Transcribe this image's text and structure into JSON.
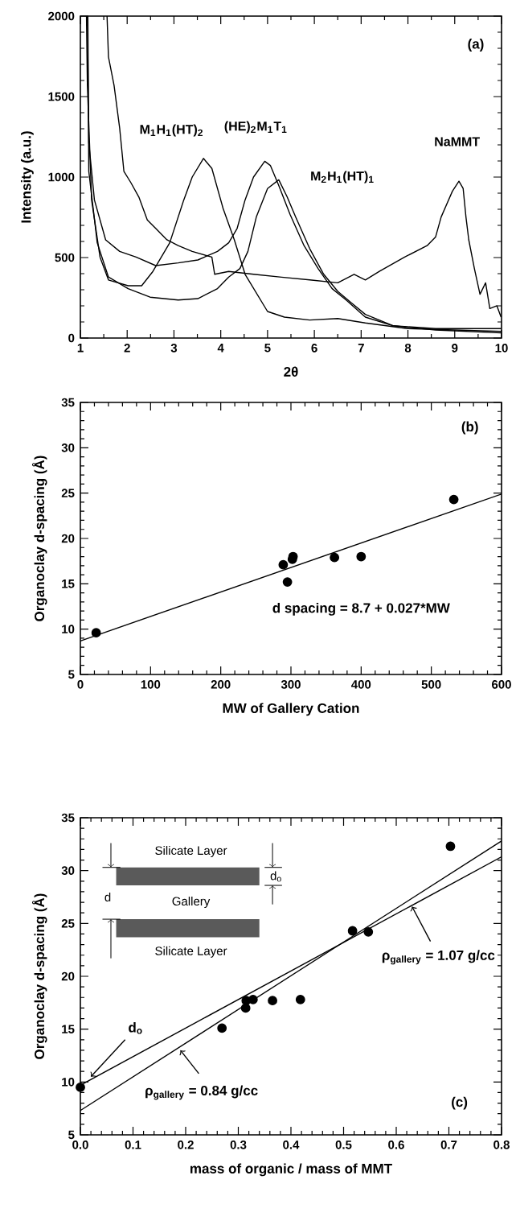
{
  "chart_data": [
    {
      "type": "line",
      "xlabel": "2θ",
      "ylabel": "Intensity (a.u.)",
      "xlim": [
        1,
        10
      ],
      "ylim": [
        0,
        2000
      ],
      "xticks": [
        1,
        2,
        3,
        4,
        5,
        6,
        7,
        8,
        9,
        10
      ],
      "yticks": [
        0,
        500,
        1000,
        1500,
        2000
      ],
      "line_style": "solid",
      "annotations": [
        "(a)"
      ],
      "series": [
        {
          "name": "M$_{1}$H$_{1}$(HT)$_{2}$",
          "color": "#000000",
          "x": [
            1.13,
            1.15,
            1.24,
            1.42,
            1.6,
            2.02,
            2.31,
            2.55,
            2.91,
            3.21,
            3.39,
            3.63,
            3.81,
            4.05,
            4.29,
            4.52,
            5.0,
            5.36,
            5.9,
            6.5,
            7.09,
            7.99,
            9.99
          ],
          "values": [
            2000,
            1569,
            858,
            503,
            361,
            325,
            325,
            414,
            592,
            858,
            1000,
            1116,
            1054,
            805,
            610,
            396,
            165,
            130,
            112,
            121,
            94,
            59,
            41
          ]
        },
        {
          "name": "(HE)$_{2}$M$_{1}$T$_{1}$",
          "color": "#000000",
          "x": [
            1.15,
            1.18,
            1.3,
            1.54,
            1.84,
            2.19,
            2.61,
            3.09,
            3.51,
            3.93,
            4.17,
            4.35,
            4.52,
            4.7,
            4.94,
            5.06,
            5.24,
            5.48,
            5.78,
            6.08,
            6.38,
            6.68,
            7.09,
            7.69,
            8.59,
            9.99
          ],
          "values": [
            2000,
            1214,
            858,
            610,
            538,
            503,
            450,
            467,
            485,
            538,
            592,
            681,
            858,
            1000,
            1098,
            1072,
            947,
            769,
            574,
            432,
            307,
            236,
            130,
            76,
            59,
            59
          ]
        },
        {
          "name": "M$_{2}$H$_{1}$(HT)$_{1}$",
          "color": "#000000",
          "x": [
            1.16,
            1.18,
            1.36,
            1.6,
            2.02,
            2.49,
            3.09,
            3.51,
            3.93,
            4.17,
            4.41,
            4.58,
            4.76,
            5.0,
            5.24,
            5.42,
            5.6,
            5.9,
            6.2,
            6.5,
            6.79,
            7.09,
            7.69,
            8.59,
            9.99
          ],
          "values": [
            2000,
            1036,
            592,
            379,
            307,
            254,
            236,
            245,
            307,
            379,
            432,
            538,
            752,
            929,
            983,
            876,
            752,
            556,
            396,
            290,
            219,
            147,
            76,
            50,
            32
          ]
        },
        {
          "name": "NaMMT",
          "color": "#000000",
          "x": [
            1.57,
            1.6,
            1.72,
            1.84,
            1.93,
            2.08,
            2.25,
            2.43,
            2.61,
            2.85,
            3.09,
            3.39,
            3.81,
            3.87,
            4.17,
            4.7,
            5.3,
            5.9,
            6.5,
            6.85,
            7.09,
            7.39,
            7.93,
            8.41,
            8.59,
            8.71,
            8.95,
            9.09,
            9.18,
            9.24,
            9.3,
            9.42,
            9.54,
            9.66,
            9.75,
            9.9,
            9.99
          ],
          "values": [
            2000,
            1747,
            1569,
            1303,
            1036,
            965,
            876,
            734,
            681,
            610,
            574,
            538,
            503,
            396,
            414,
            396,
            378,
            361,
            343,
            396,
            361,
            414,
            503,
            574,
            627,
            752,
            912,
            974,
            929,
            752,
            610,
            432,
            272,
            343,
            183,
            201,
            130
          ]
        }
      ]
    },
    {
      "type": "scatter",
      "xlabel": "MW of Gallery Cation",
      "ylabel": "Organoclay d-spacing (Å)",
      "xlim": [
        0,
        600
      ],
      "ylim": [
        5,
        35
      ],
      "xticks": [
        0,
        100,
        200,
        300,
        400,
        500,
        600
      ],
      "yticks": [
        5,
        10,
        15,
        20,
        25,
        30,
        35
      ],
      "line_style": "solid",
      "annotations": [
        "(b)",
        "d spacing = 8.7 + 0.027*MW"
      ],
      "series": [
        {
          "type": "scatter",
          "marker": "circle",
          "color": "#000000",
          "x": [
            22.5,
            289,
            295,
            302,
            303,
            362,
            400,
            532
          ],
          "values": [
            9.6,
            17.1,
            15.2,
            17.7,
            18.0,
            17.9,
            18.0,
            24.3
          ]
        },
        {
          "type": "line",
          "marker": "none",
          "color": "#000000",
          "x": [
            0,
            600
          ],
          "values": [
            8.7,
            24.9
          ]
        }
      ]
    },
    {
      "type": "scatter",
      "xlabel": "mass of organic / mass of MMT",
      "ylabel": "Organoclay d-spacing (Å)",
      "xlim": [
        0,
        0.8
      ],
      "ylim": [
        5,
        35
      ],
      "xticks": [
        {
          "value": 0,
          "label": "0.0"
        },
        0.1,
        0.2,
        0.3,
        0.4,
        0.5,
        0.6,
        0.7,
        0.8
      ],
      "yticks": [
        5,
        10,
        15,
        20,
        25,
        30,
        35
      ],
      "line_style": "solid",
      "annotations": [
        "(c)",
        {
          "text": "ρ$_{gallery}$ = 1.07 g/cc",
          "x": 0.63,
          "y": 26.6
        },
        {
          "text": "ρ$_{gallery}$ = 0.84 g/cc",
          "x": 0.19,
          "y": 13.0
        },
        {
          "text": "d$_{o}$",
          "x": 0.02,
          "y": 10.5
        },
        "Silicate Layer",
        "d$_{o}$",
        "d",
        "Gallery",
        "Silicate Layer"
      ],
      "series": [
        {
          "type": "scatter",
          "marker": "circle",
          "color": "#000000",
          "x": [
            0.0,
            0.269,
            0.314,
            0.315,
            0.328,
            0.365,
            0.418,
            0.517,
            0.547,
            0.703
          ],
          "values": [
            9.5,
            15.1,
            17.0,
            17.7,
            17.8,
            17.7,
            17.8,
            24.3,
            24.2,
            32.3
          ]
        },
        {
          "type": "line",
          "marker": "none",
          "color": "#000000",
          "x": [
            0,
            0.8
          ],
          "values": [
            9.7,
            31.3
          ]
        },
        {
          "type": "line",
          "marker": "none",
          "color": "#000000",
          "x": [
            0,
            0.8
          ],
          "values": [
            7.3,
            32.8
          ]
        }
      ]
    }
  ]
}
